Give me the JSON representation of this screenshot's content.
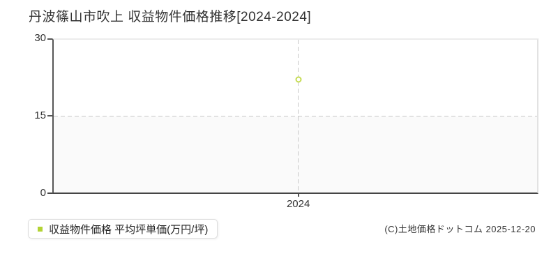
{
  "chart_data": {
    "type": "scatter",
    "title": "丹波篠山市吹上 収益物件価格推移[2024-2024]",
    "categories": [
      "2024"
    ],
    "series": [
      {
        "name": "収益物件価格 平均坪単価(万円/坪)",
        "values": [
          22.2
        ],
        "color": "#b3d334",
        "marker": "hollow-circle",
        "marker_stroke": "#c6dc55"
      }
    ],
    "xlabel": "",
    "ylabel": "",
    "ylim": [
      0,
      30
    ],
    "yticks": [
      0,
      15,
      30
    ],
    "xticks": [
      "2024"
    ],
    "grid": "dashed-at-ticks",
    "gridline_color": "#c8c8c8",
    "lower_band_color": "#fafafa",
    "legend_position": "below-plot-left"
  },
  "footer": {
    "copyright": "(C)土地価格ドットコム 2025-12-20"
  }
}
